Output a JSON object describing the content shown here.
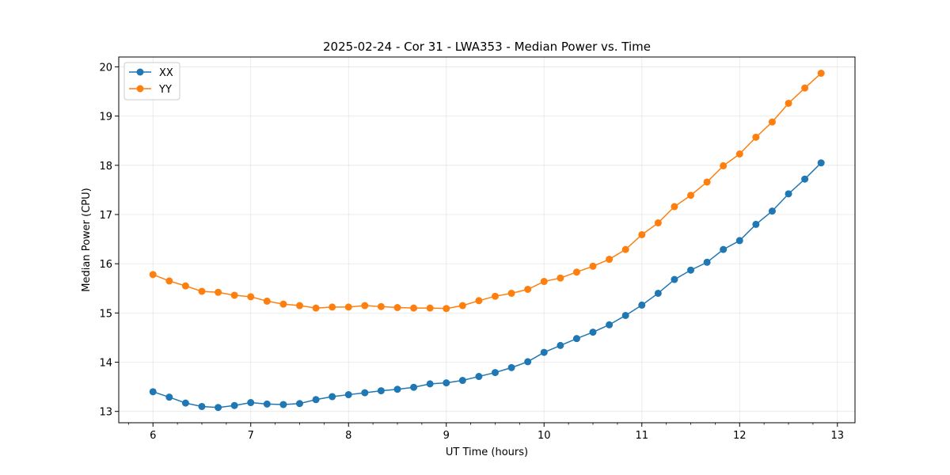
{
  "chart_data": {
    "type": "line",
    "title": "2025-02-24 - Cor 31 - LWA353 - Median Power vs. Time",
    "xlabel": "UT Time (hours)",
    "ylabel": "Median Power (CPU)",
    "xlim": [
      5.65,
      13.18
    ],
    "ylim": [
      12.77,
      20.2
    ],
    "xticks": [
      6,
      7,
      8,
      9,
      10,
      11,
      12,
      13
    ],
    "yticks": [
      13,
      14,
      15,
      16,
      17,
      18,
      19,
      20
    ],
    "grid": true,
    "legend_position": "top-left",
    "x": [
      6.0,
      6.1667,
      6.3333,
      6.5,
      6.6667,
      6.8333,
      7.0,
      7.1667,
      7.3333,
      7.5,
      7.6667,
      7.8333,
      8.0,
      8.1667,
      8.3333,
      8.5,
      8.6667,
      8.8333,
      9.0,
      9.1667,
      9.3333,
      9.5,
      9.6667,
      9.8333,
      10.0,
      10.1667,
      10.3333,
      10.5,
      10.6667,
      10.8333,
      11.0,
      11.1667,
      11.3333,
      11.5,
      11.6667,
      11.8333,
      12.0,
      12.1667,
      12.3333,
      12.5,
      12.6667,
      12.8333
    ],
    "series": [
      {
        "name": "XX",
        "color": "#1f77b4",
        "values": [
          13.4,
          13.29,
          13.17,
          13.1,
          13.08,
          13.12,
          13.18,
          13.15,
          13.14,
          13.16,
          13.24,
          13.3,
          13.34,
          13.38,
          13.42,
          13.45,
          13.49,
          13.56,
          13.58,
          13.63,
          13.71,
          13.79,
          13.89,
          14.01,
          14.2,
          14.34,
          14.48,
          14.61,
          14.76,
          14.95,
          15.16,
          15.4,
          15.68,
          15.87,
          16.03,
          16.29,
          16.47,
          16.8,
          17.07,
          17.42,
          17.72,
          18.05
        ]
      },
      {
        "name": "YY",
        "color": "#ff7f0e",
        "values": [
          15.78,
          15.65,
          15.55,
          15.44,
          15.42,
          15.36,
          15.33,
          15.24,
          15.18,
          15.15,
          15.1,
          15.12,
          15.12,
          15.15,
          15.13,
          15.11,
          15.1,
          15.1,
          15.09,
          15.15,
          15.25,
          15.34,
          15.4,
          15.48,
          15.64,
          15.71,
          15.83,
          15.95,
          16.09,
          16.29,
          16.59,
          16.83,
          17.16,
          17.39,
          17.66,
          17.99,
          18.23,
          18.57,
          18.88,
          19.26,
          19.57,
          19.87
        ]
      }
    ]
  }
}
